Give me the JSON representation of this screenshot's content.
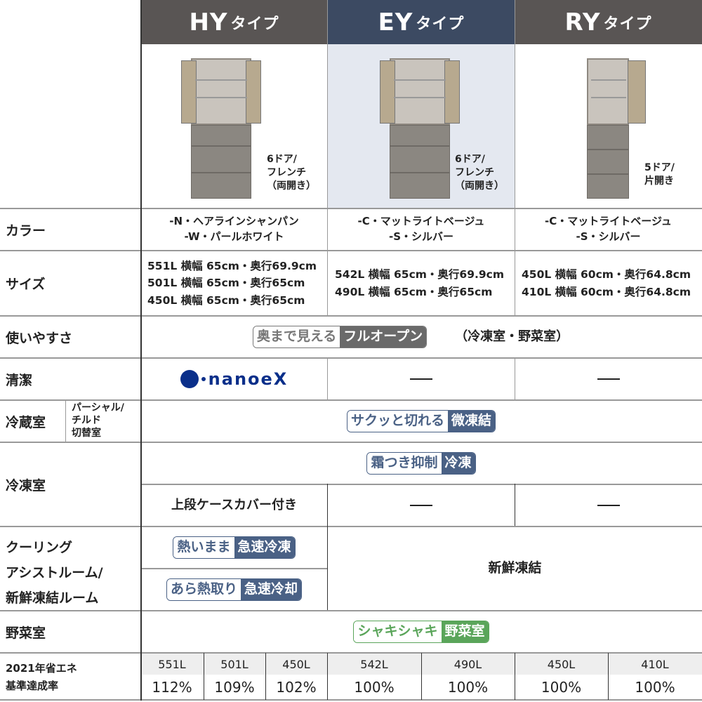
{
  "headers": [
    {
      "name": "HY",
      "suffix": "タイプ"
    },
    {
      "name": "EY",
      "suffix": "タイプ"
    },
    {
      "name": "RY",
      "suffix": "タイプ"
    }
  ],
  "colors": {
    "hy_header": "#595554",
    "ey_header": "#3c4a62",
    "ry_header": "#595554",
    "ey_highlight": "#e4e8f0",
    "badge_blue": "#4a6185",
    "badge_green": "#5aa55a",
    "nanoe": "#0a2f8a"
  },
  "products": [
    {
      "doors": [
        "6ドア/",
        "フレンチ",
        "（両開き）"
      ]
    },
    {
      "doors": [
        "6ドア/",
        "フレンチ",
        "（両開き）"
      ]
    },
    {
      "doors": [
        "5ドア/",
        "片開き"
      ]
    }
  ],
  "rows": {
    "color": {
      "label": "カラー",
      "hy": [
        "-N・ヘアラインシャンパン",
        "-W・パールホワイト"
      ],
      "ey": [
        "-C・マットライトベージュ",
        "-S・シルバー"
      ],
      "ry": [
        "-C・マットライトベージュ",
        "-S・シルバー"
      ]
    },
    "size": {
      "label": "サイズ",
      "hy": [
        "551L 横幅 65cm・奥行69.9cm",
        "501L 横幅 65cm・奥行65cm",
        "450L 横幅 65cm・奥行65cm"
      ],
      "ey": [
        "542L 横幅 65cm・奥行69.9cm",
        "490L 横幅 65cm・奥行65cm"
      ],
      "ry": [
        "450L 横幅 60cm・奥行64.8cm",
        "410L 横幅 60cm・奥行64.8cm"
      ]
    },
    "ease": {
      "label": "使いやすさ",
      "badge_a": "奥まで見える",
      "badge_b": "フルオープン",
      "note": "（冷凍室・野菜室）"
    },
    "clean": {
      "label": "清潔",
      "hy_logo": "nanoeX",
      "ey": "—",
      "ry": "—"
    },
    "fridge": {
      "label": "冷蔵室",
      "sub": [
        "パーシャル/",
        "チルド",
        "切替室"
      ],
      "badge_a": "サクッと切れる",
      "badge_b": "微凍結"
    },
    "freezer": {
      "label": "冷凍室",
      "badge_a": "霜つき抑制",
      "badge_b": "冷凍",
      "hy_extra": "上段ケースカバー付き",
      "ey": "—",
      "ry": "—"
    },
    "cooling": {
      "label": [
        "クーリング",
        "アシストルーム/",
        "新鮮凍結ルーム"
      ],
      "hy1_a": "熱いまま",
      "hy1_b": "急速冷凍",
      "hy2_a": "あら熱取り",
      "hy2_b": "急速冷却",
      "other": "新鮮凍結"
    },
    "veg": {
      "label": "野菜室",
      "badge_a": "シャキシャキ",
      "badge_b": "野菜室"
    },
    "energy": {
      "label": [
        "2021年省エネ",
        "基準達成率"
      ],
      "items": [
        {
          "cap": "551L",
          "pct": "112%"
        },
        {
          "cap": "501L",
          "pct": "109%"
        },
        {
          "cap": "450L",
          "pct": "102%"
        },
        {
          "cap": "542L",
          "pct": "100%"
        },
        {
          "cap": "490L",
          "pct": "100%"
        },
        {
          "cap": "450L",
          "pct": "100%"
        },
        {
          "cap": "410L",
          "pct": "100%"
        }
      ]
    }
  }
}
